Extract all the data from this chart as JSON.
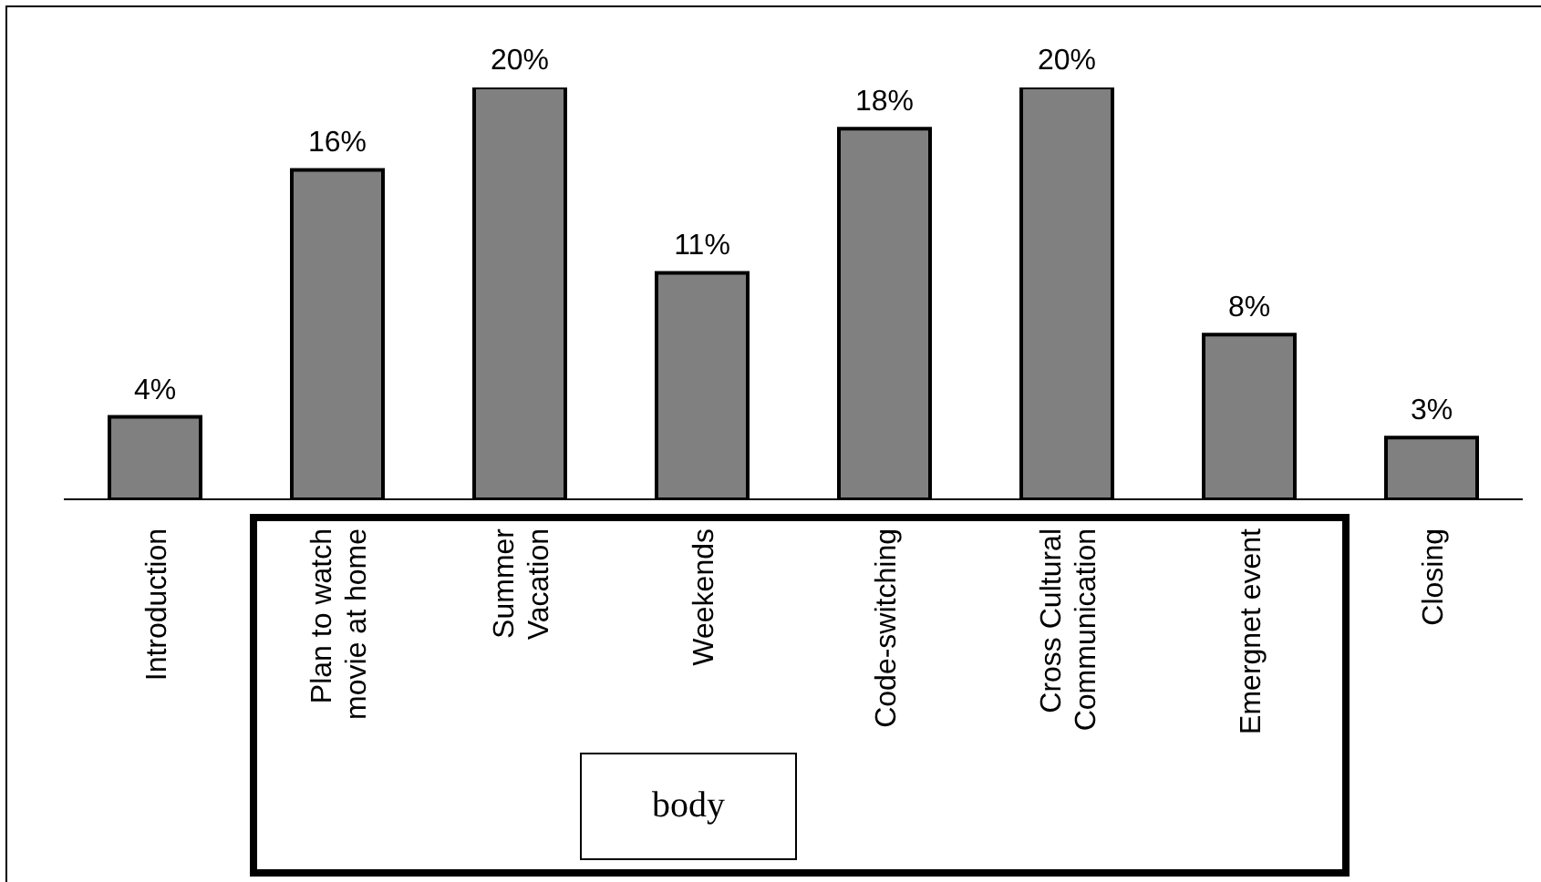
{
  "chart_data": {
    "type": "bar",
    "categories": [
      "Introduction",
      "Plan to watch movie at home",
      "Summer Vacation",
      "Weekends",
      "Code-switching",
      "Cross Cultural Communication",
      "Emergnet event",
      "Closing"
    ],
    "values": [
      4,
      16,
      20,
      11,
      18,
      20,
      8,
      3
    ],
    "value_labels": [
      "4%",
      "16%",
      "20%",
      "11%",
      "18%",
      "20%",
      "8%",
      "3%"
    ],
    "color": "#808080",
    "ylim": [
      0,
      20
    ],
    "tick_labels": "x",
    "annotations": [
      "body"
    ]
  }
}
